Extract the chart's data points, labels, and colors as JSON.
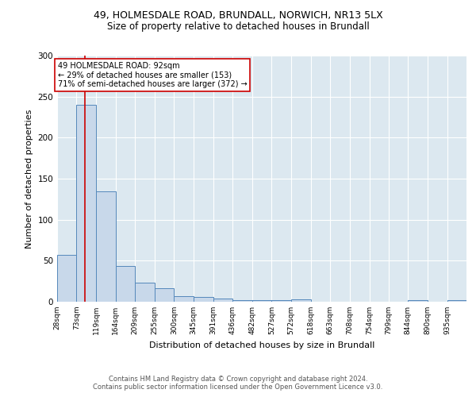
{
  "title1": "49, HOLMESDALE ROAD, BRUNDALL, NORWICH, NR13 5LX",
  "title2": "Size of property relative to detached houses in Brundall",
  "xlabel": "Distribution of detached houses by size in Brundall",
  "ylabel": "Number of detached properties",
  "bin_labels": [
    "28sqm",
    "73sqm",
    "119sqm",
    "164sqm",
    "209sqm",
    "255sqm",
    "300sqm",
    "345sqm",
    "391sqm",
    "436sqm",
    "482sqm",
    "527sqm",
    "572sqm",
    "618sqm",
    "663sqm",
    "708sqm",
    "754sqm",
    "799sqm",
    "844sqm",
    "890sqm",
    "935sqm"
  ],
  "bin_edges": [
    28,
    73,
    119,
    164,
    209,
    255,
    300,
    345,
    391,
    436,
    482,
    527,
    572,
    618,
    663,
    708,
    754,
    799,
    844,
    890,
    935,
    980
  ],
  "bar_heights": [
    57,
    240,
    135,
    44,
    23,
    16,
    7,
    6,
    4,
    2,
    2,
    2,
    3,
    0,
    0,
    0,
    0,
    0,
    2,
    0,
    2
  ],
  "bar_color": "#c8d8ea",
  "bar_edge_color": "#5588bb",
  "property_size": 92,
  "red_line_color": "#cc0000",
  "annotation_text": "49 HOLMESDALE ROAD: 92sqm\n← 29% of detached houses are smaller (153)\n71% of semi-detached houses are larger (372) →",
  "annotation_box_color": "#ffffff",
  "annotation_box_edge": "#cc0000",
  "footer_text": "Contains HM Land Registry data © Crown copyright and database right 2024.\nContains public sector information licensed under the Open Government Licence v3.0.",
  "ylim": [
    0,
    300
  ],
  "fig_bg_color": "#ffffff",
  "plot_bg_color": "#dce8f0"
}
